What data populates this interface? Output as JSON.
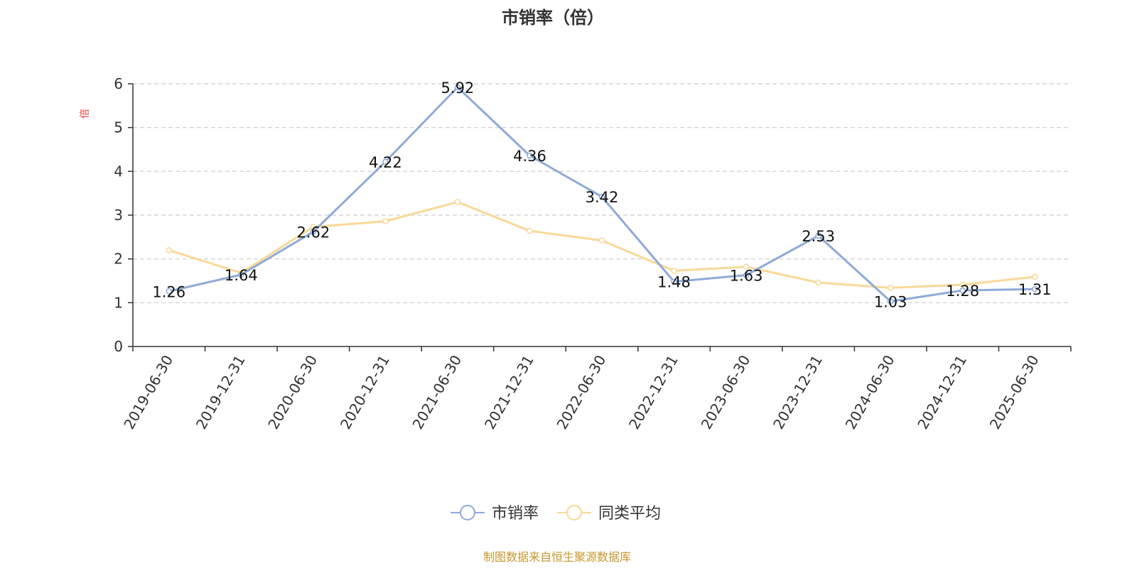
{
  "chart_data": {
    "type": "line",
    "title": "市销率（倍）",
    "ylabel": "倍",
    "ylim": [
      0,
      6
    ],
    "yticks": [
      0,
      1,
      2,
      3,
      4,
      5,
      6
    ],
    "grid": true,
    "legend_position": "bottom",
    "categories": [
      "2019-06-30",
      "2019-12-31",
      "2020-06-30",
      "2020-12-31",
      "2021-06-30",
      "2021-12-31",
      "2022-06-30",
      "2022-12-31",
      "2023-06-30",
      "2023-12-31",
      "2024-06-30",
      "2024-12-31",
      "2025-06-30"
    ],
    "series": [
      {
        "name": "市销率",
        "color": "#8eaad8",
        "show_labels": true,
        "values": [
          1.26,
          1.64,
          2.62,
          4.22,
          5.92,
          4.36,
          3.42,
          1.48,
          1.63,
          2.53,
          1.03,
          1.28,
          1.31
        ]
      },
      {
        "name": "同类平均",
        "color": "#f9d898",
        "show_labels": false,
        "values": [
          2.2,
          1.68,
          2.73,
          2.86,
          3.3,
          2.64,
          2.42,
          1.73,
          1.82,
          1.46,
          1.34,
          1.41,
          1.59
        ]
      }
    ]
  },
  "source_text": "制图数据来自恒生聚源数据库",
  "colors": {
    "axis": "#333333",
    "grid": "#cccccc",
    "unit_label": "#e53935",
    "source": "#c8962e"
  }
}
